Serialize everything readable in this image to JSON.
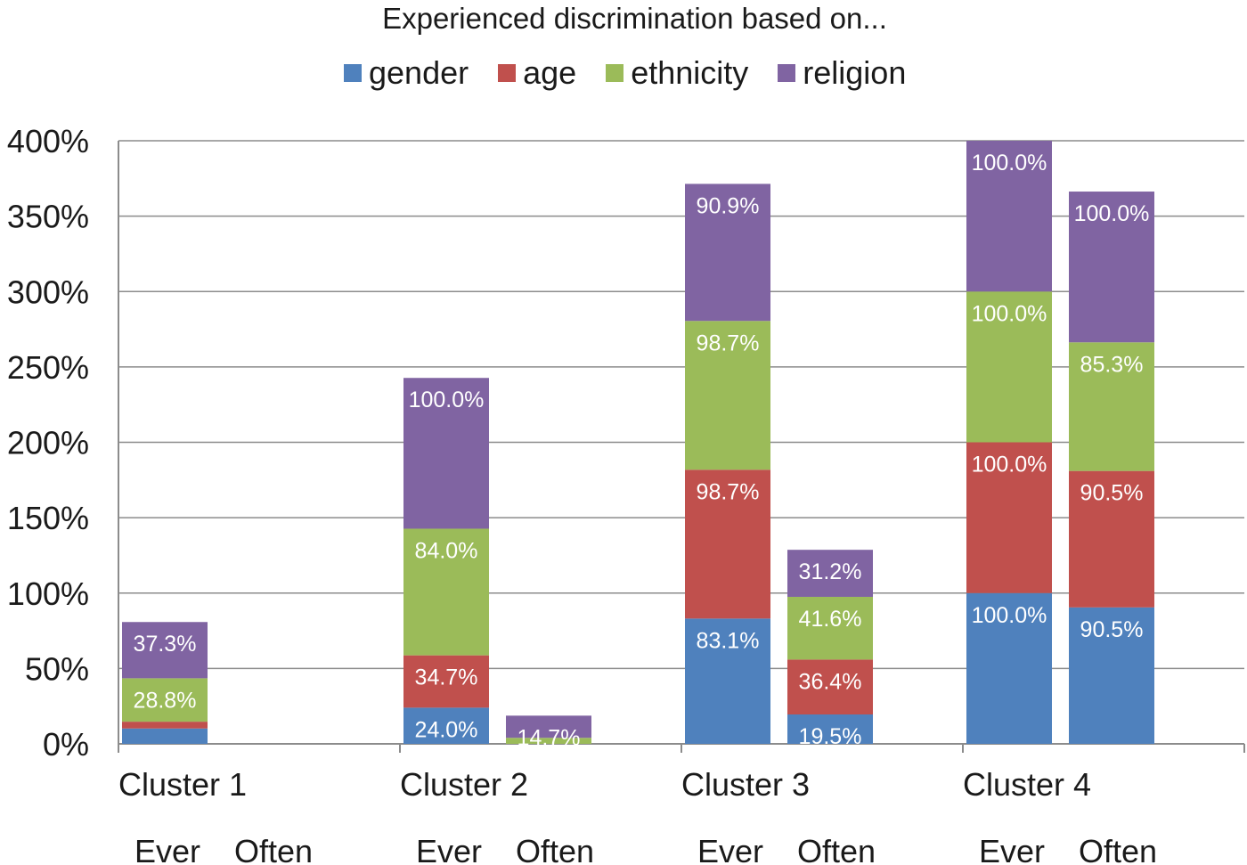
{
  "chart_data": {
    "type": "bar",
    "stacked": true,
    "title": "Experienced discrimination based on...",
    "ylim": [
      0,
      400
    ],
    "yticks": [
      "0%",
      "50%",
      "100%",
      "150%",
      "200%",
      "250%",
      "300%",
      "350%",
      "400%"
    ],
    "yticks_values": [
      0,
      50,
      100,
      150,
      200,
      250,
      300,
      350,
      400
    ],
    "groups": [
      "Cluster 1",
      "Cluster 2",
      "Cluster 3",
      "Cluster 4"
    ],
    "bar_labels": [
      "Ever",
      "Often"
    ],
    "categories": [
      "Cluster 1 Ever",
      "Cluster 1 Often",
      "Cluster 2 Ever",
      "Cluster 2 Often",
      "Cluster 3 Ever",
      "Cluster 3 Often",
      "Cluster 4 Ever",
      "Cluster 4 Often"
    ],
    "legend_position": "top-center",
    "grid": true,
    "series": [
      {
        "name": "gender",
        "color": "#4f81bd",
        "values": [
          10.2,
          0,
          24.0,
          0,
          83.1,
          19.5,
          100.0,
          90.5
        ],
        "labels": [
          "",
          "",
          "24.0%",
          "",
          "83.1%",
          "19.5%",
          "100.0%",
          "90.5%"
        ]
      },
      {
        "name": "age",
        "color": "#c0504d",
        "values": [
          4.5,
          0,
          34.7,
          0,
          98.7,
          36.4,
          100.0,
          90.5
        ],
        "labels": [
          "",
          "",
          "34.7%",
          "",
          "98.7%",
          "36.4%",
          "100.0%",
          "90.5%"
        ]
      },
      {
        "name": "ethnicity",
        "color": "#9bbb59",
        "values": [
          28.8,
          0,
          84.0,
          4.0,
          98.7,
          41.6,
          100.0,
          85.3
        ],
        "labels": [
          "28.8%",
          "",
          "84.0%",
          "",
          "98.7%",
          "41.6%",
          "100.0%",
          "85.3%"
        ]
      },
      {
        "name": "religion",
        "color": "#8064a2",
        "values": [
          37.3,
          0,
          100.0,
          14.7,
          90.9,
          31.2,
          100.0,
          100.0
        ],
        "labels": [
          "37.3%",
          "",
          "100.0%",
          "14.7%",
          "90.9%",
          "31.2%",
          "100.0%",
          "100.0%"
        ]
      }
    ]
  }
}
